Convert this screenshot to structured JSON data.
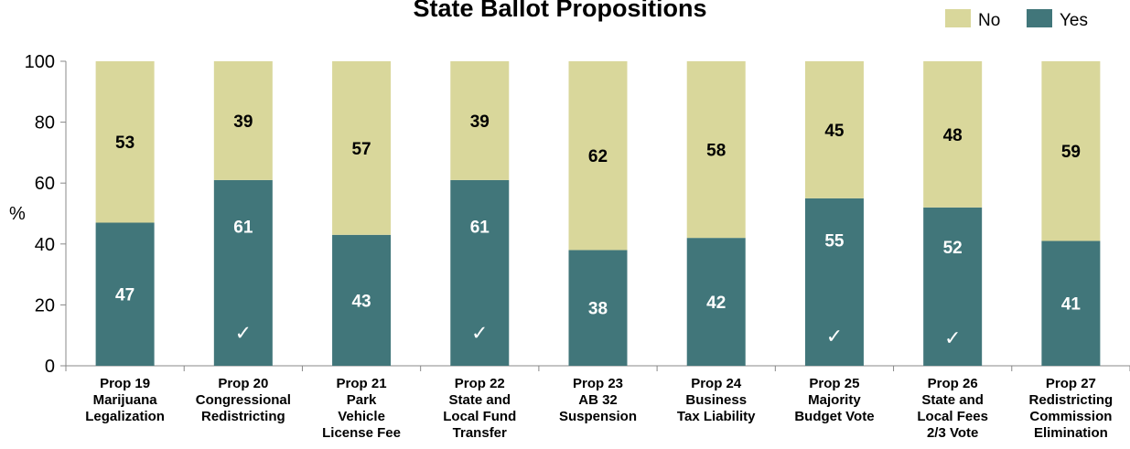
{
  "chart_data": {
    "type": "bar",
    "stacked": true,
    "title": "State Ballot Propositions",
    "ylabel": "%",
    "ylim": [
      0,
      100
    ],
    "yticks": [
      0,
      20,
      40,
      60,
      80,
      100
    ],
    "legend_position": "top-right",
    "categories": [
      [
        "Prop 19",
        "Marijuana",
        "Legalization"
      ],
      [
        "Prop 20",
        "Congressional",
        "Redistricting"
      ],
      [
        "Prop 21",
        "Park",
        "Vehicle",
        "License Fee"
      ],
      [
        "Prop 22",
        "State and",
        "Local Fund",
        "Transfer"
      ],
      [
        "Prop 23",
        "AB 32",
        "Suspension"
      ],
      [
        "Prop 24",
        "Business",
        "Tax Liability"
      ],
      [
        "Prop 25",
        "Majority",
        "Budget Vote"
      ],
      [
        "Prop 26",
        "State and",
        "Local Fees",
        "2/3 Vote"
      ],
      [
        "Prop 27",
        "Redistricting",
        "Commission",
        "Elimination"
      ]
    ],
    "series": [
      {
        "name": "Yes",
        "color": "#41767A",
        "values": [
          47,
          61,
          43,
          61,
          38,
          42,
          55,
          52,
          41
        ]
      },
      {
        "name": "No",
        "color": "#D9D79B",
        "values": [
          53,
          39,
          57,
          39,
          62,
          58,
          45,
          48,
          59
        ]
      }
    ],
    "legend_order": [
      "No",
      "Yes"
    ],
    "passed": [
      false,
      true,
      false,
      true,
      false,
      false,
      true,
      true,
      false
    ],
    "check_symbol": "✓"
  }
}
